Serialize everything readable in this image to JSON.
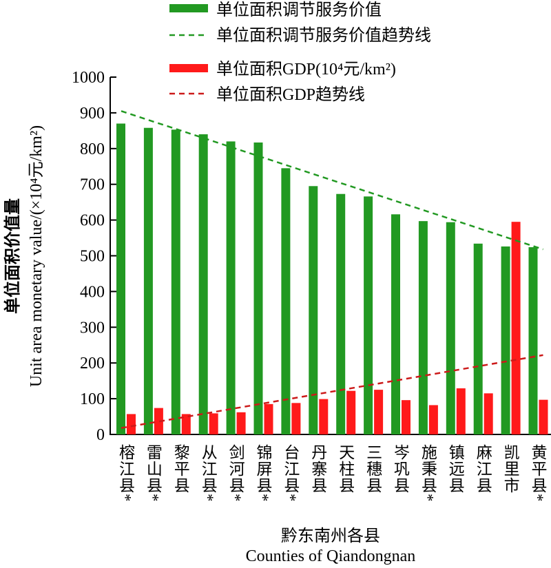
{
  "chart_data": {
    "type": "bar",
    "ylabel_cn": "单位面积价值量",
    "ylabel_en": "Unit area monetary value/(×10⁴元/km²)",
    "xlabel_cn": "黔东南州各县",
    "xlabel_en": "Counties of Qiandongnan",
    "ylim": [
      0,
      1000
    ],
    "yticks": [
      "0",
      "100",
      "200",
      "300",
      "400",
      "500",
      "600",
      "700",
      "800",
      "900",
      "1000"
    ],
    "categories": [
      "榕江县*",
      "雷山县*",
      "黎平县",
      "从江县*",
      "剑河县*",
      "锦屏县*",
      "台江县*",
      "丹寨县",
      "天柱县",
      "三穗县",
      "岑巩县",
      "施秉县*",
      "镇远县",
      "麻江县",
      "凯里市",
      "黄平县*"
    ],
    "series": [
      {
        "name": "单位面积调节服务价值",
        "color": "#229922",
        "values": [
          870,
          858,
          853,
          840,
          820,
          817,
          745,
          695,
          673,
          666,
          616,
          597,
          594,
          534,
          526,
          524
        ]
      },
      {
        "name": "单位面积GDP(10⁴元/km²)",
        "color": "#ff1a1a",
        "values": [
          57,
          74,
          57,
          59,
          62,
          85,
          88,
          99,
          122,
          125,
          96,
          82,
          129,
          115,
          595,
          97
        ]
      }
    ],
    "trendlines": [
      {
        "name": "单位面积调节服务价值趋势线",
        "color": "#229922",
        "start": 905,
        "end": 518
      },
      {
        "name": "单位面积GDP趋势线",
        "color": "#cc1a1a",
        "start": 18,
        "end": 222
      }
    ],
    "legend_position": "top"
  }
}
